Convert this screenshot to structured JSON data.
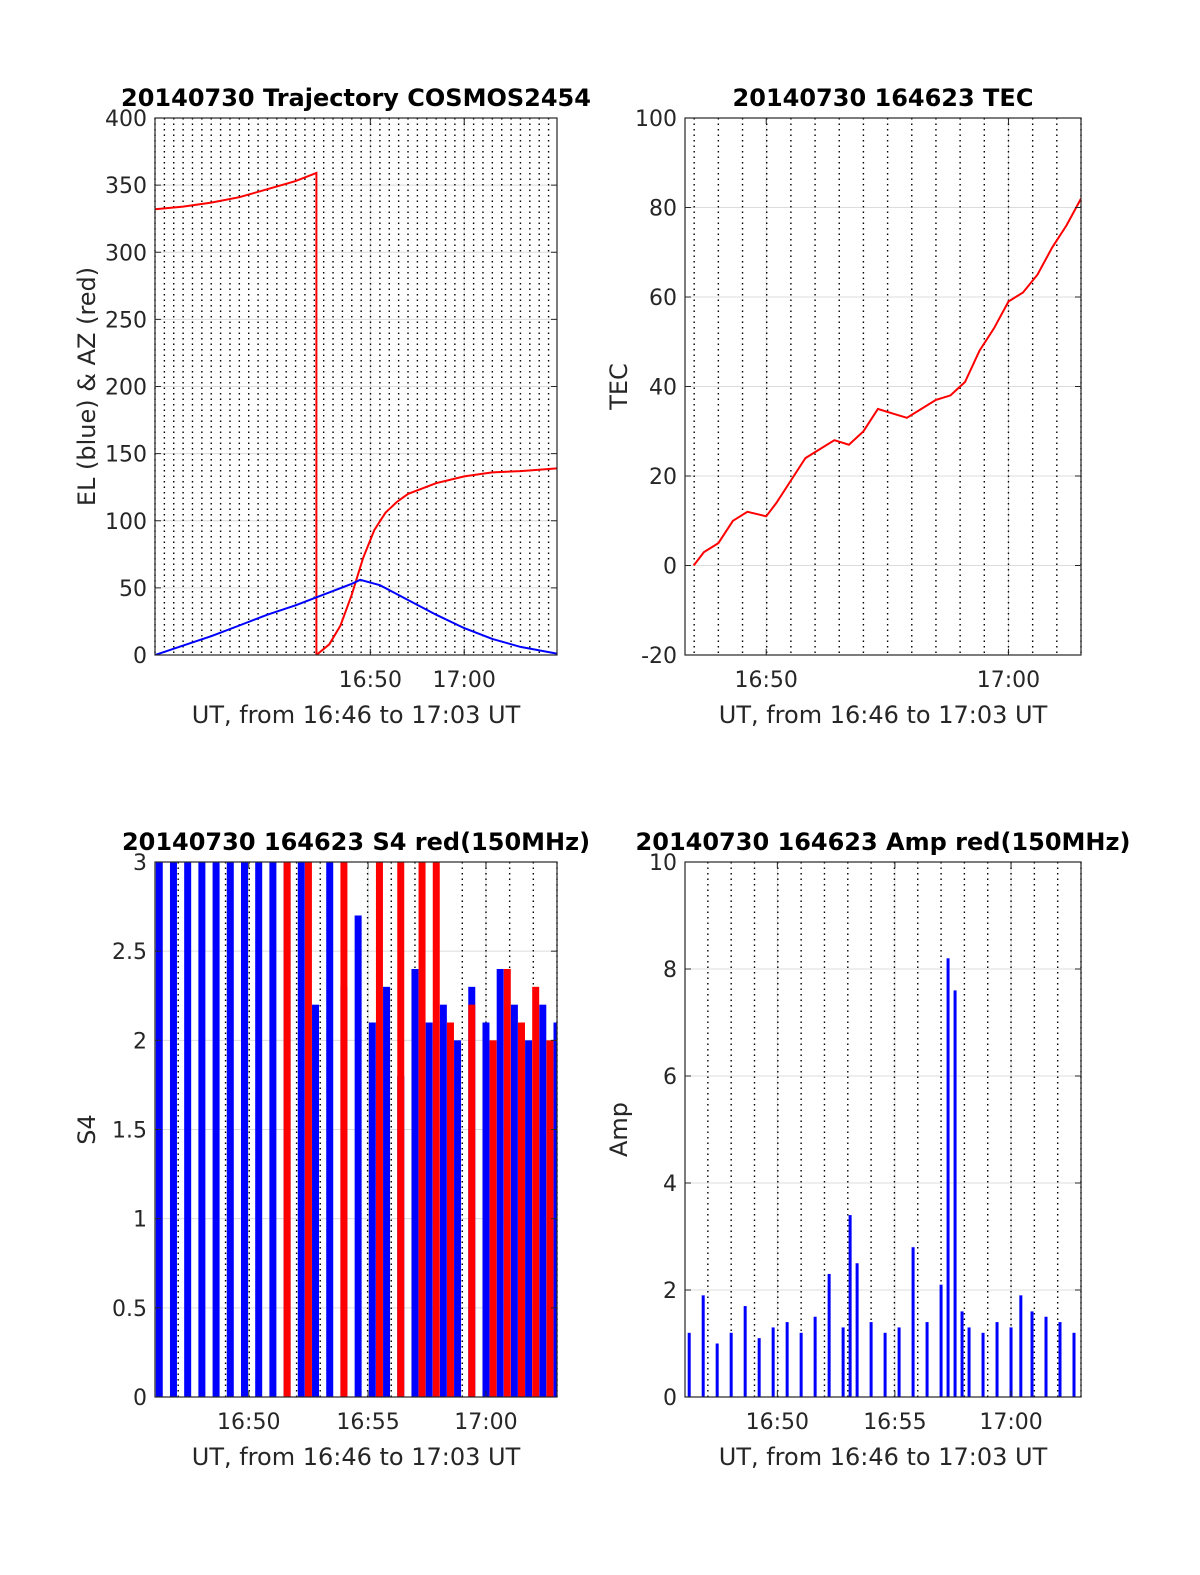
{
  "colors": {
    "red": "#ff0000",
    "blue": "#0000ff",
    "axis": "#262626",
    "grid": "#dcdcdc",
    "text": "#262626"
  },
  "chart_data": [
    {
      "type": "line",
      "title": "20140730 Trajectory COSMOS2454",
      "xlabel": "UT, from 16:46 to 17:03 UT",
      "ylabel": "EL (blue) & AZ (red)",
      "xlim": [
        16.45,
        17.165
      ],
      "ylim": [
        0,
        400
      ],
      "xticks": [
        16.833,
        17.0
      ],
      "xticklabels": [
        "16:50",
        "17:00"
      ],
      "yticks": [
        0,
        50,
        100,
        150,
        200,
        250,
        300,
        350,
        400
      ],
      "yticklabels": [
        "0",
        "50",
        "100",
        "150",
        "200",
        "250",
        "300",
        "350",
        "400"
      ],
      "grid": true,
      "series": [
        {
          "color": "red",
          "points": [
            [
              16.45,
              332
            ],
            [
              16.5,
              334
            ],
            [
              16.55,
              337
            ],
            [
              16.6,
              341
            ],
            [
              16.65,
              347
            ],
            [
              16.7,
              353
            ],
            [
              16.737,
              359
            ],
            [
              16.737,
              0
            ],
            [
              16.76,
              8
            ],
            [
              16.78,
              22
            ],
            [
              16.8,
              45
            ],
            [
              16.82,
              72
            ],
            [
              16.84,
              93
            ],
            [
              16.86,
              106
            ],
            [
              16.88,
              114
            ],
            [
              16.9,
              120
            ],
            [
              16.95,
              128
            ],
            [
              17.0,
              133
            ],
            [
              17.05,
              136
            ],
            [
              17.1,
              137
            ],
            [
              17.165,
              139
            ]
          ]
        },
        {
          "color": "blue",
          "points": [
            [
              16.45,
              0
            ],
            [
              16.5,
              7
            ],
            [
              16.55,
              14
            ],
            [
              16.6,
              22
            ],
            [
              16.65,
              30
            ],
            [
              16.7,
              37
            ],
            [
              16.75,
              45
            ],
            [
              16.8,
              53
            ],
            [
              16.815,
              56
            ],
            [
              16.85,
              52
            ],
            [
              16.9,
              41
            ],
            [
              16.95,
              30
            ],
            [
              17.0,
              20
            ],
            [
              17.05,
              12
            ],
            [
              17.1,
              6
            ],
            [
              17.165,
              1
            ]
          ]
        }
      ]
    },
    {
      "type": "line",
      "title": "20140730 164623 TEC",
      "xlabel": "UT, from 16:46 to 17:03 UT",
      "ylabel": "TEC",
      "xlim": [
        16.777,
        17.05
      ],
      "ylim": [
        -20,
        100
      ],
      "xticks": [
        16.833,
        17.0
      ],
      "xticklabels": [
        "16:50",
        "17:00"
      ],
      "yticks": [
        -20,
        0,
        20,
        40,
        60,
        80,
        100
      ],
      "yticklabels": [
        "-20",
        "0",
        "20",
        "40",
        "60",
        "80",
        "100"
      ],
      "grid": true,
      "series": [
        {
          "color": "red",
          "points": [
            [
              16.783,
              0
            ],
            [
              16.79,
              3
            ],
            [
              16.8,
              5
            ],
            [
              16.81,
              10
            ],
            [
              16.82,
              12
            ],
            [
              16.833,
              11
            ],
            [
              16.84,
              14
            ],
            [
              16.85,
              19
            ],
            [
              16.86,
              24
            ],
            [
              16.87,
              26
            ],
            [
              16.88,
              28
            ],
            [
              16.89,
              27
            ],
            [
              16.9,
              30
            ],
            [
              16.91,
              35
            ],
            [
              16.92,
              34
            ],
            [
              16.93,
              33
            ],
            [
              16.94,
              35
            ],
            [
              16.95,
              37
            ],
            [
              16.96,
              38
            ],
            [
              16.97,
              41
            ],
            [
              16.98,
              48
            ],
            [
              16.99,
              53
            ],
            [
              17.0,
              59
            ],
            [
              17.01,
              61
            ],
            [
              17.02,
              65
            ],
            [
              17.03,
              71
            ],
            [
              17.04,
              76
            ],
            [
              17.05,
              82
            ]
          ]
        }
      ]
    },
    {
      "type": "bar",
      "title": "20140730 164623 S4 red(150MHz)",
      "xlabel": "UT, from 16:46 to 17:03 UT",
      "ylabel": "S4",
      "xlim": [
        16.767,
        17.05
      ],
      "ylim": [
        0,
        3
      ],
      "xticks": [
        16.833,
        16.917,
        17.0
      ],
      "xticklabels": [
        "16:50",
        "16:55",
        "17:00"
      ],
      "yticks": [
        0,
        0.5,
        1,
        1.5,
        2,
        2.5,
        3
      ],
      "yticklabels": [
        "0",
        "0.5",
        "1",
        "1.5",
        "2",
        "2.5",
        "3"
      ],
      "grid": true,
      "series": [
        {
          "color": "blue",
          "points": [
            [
              16.77,
              3
            ],
            [
              16.78,
              3
            ],
            [
              16.79,
              3
            ],
            [
              16.8,
              3
            ],
            [
              16.81,
              3
            ],
            [
              16.82,
              3
            ],
            [
              16.83,
              3
            ],
            [
              16.84,
              3
            ],
            [
              16.85,
              3
            ],
            [
              16.86,
              3
            ],
            [
              16.87,
              3
            ],
            [
              16.88,
              2.2
            ],
            [
              16.89,
              3
            ],
            [
              16.9,
              2.3
            ],
            [
              16.91,
              2.7
            ],
            [
              16.92,
              2.1
            ],
            [
              16.93,
              2.3
            ],
            [
              16.94,
              1.8
            ],
            [
              16.95,
              2.4
            ],
            [
              16.96,
              2.1
            ],
            [
              16.97,
              2.2
            ],
            [
              16.98,
              2.0
            ],
            [
              16.99,
              2.3
            ],
            [
              17.0,
              2.1
            ],
            [
              17.01,
              2.4
            ],
            [
              17.02,
              2.2
            ],
            [
              17.03,
              2.0
            ],
            [
              17.04,
              2.2
            ],
            [
              17.05,
              2.1
            ]
          ]
        },
        {
          "color": "red",
          "points": [
            [
              16.86,
              3
            ],
            [
              16.875,
              3
            ],
            [
              16.9,
              3
            ],
            [
              16.925,
              3
            ],
            [
              16.94,
              3
            ],
            [
              16.955,
              3
            ],
            [
              16.965,
              3
            ],
            [
              16.975,
              2.1
            ],
            [
              16.99,
              2.2
            ],
            [
              17.005,
              2.0
            ],
            [
              17.015,
              2.4
            ],
            [
              17.025,
              2.1
            ],
            [
              17.035,
              2.3
            ],
            [
              17.045,
              2.0
            ]
          ]
        }
      ]
    },
    {
      "type": "bar",
      "title": "20140730 164623 Amp red(150MHz)",
      "xlabel": "UT, from 16:46 to 17:03 UT",
      "ylabel": "Amp",
      "xlim": [
        16.767,
        17.05
      ],
      "ylim": [
        0,
        10
      ],
      "xticks": [
        16.833,
        16.917,
        17.0
      ],
      "xticklabels": [
        "16:50",
        "16:55",
        "17:00"
      ],
      "yticks": [
        0,
        2,
        4,
        6,
        8,
        10
      ],
      "yticklabels": [
        "0",
        "2",
        "4",
        "6",
        "8",
        "10"
      ],
      "grid": true,
      "series": [
        {
          "color": "blue",
          "points": [
            [
              16.77,
              1.2
            ],
            [
              16.78,
              1.9
            ],
            [
              16.79,
              1.0
            ],
            [
              16.8,
              1.2
            ],
            [
              16.81,
              1.7
            ],
            [
              16.82,
              1.1
            ],
            [
              16.83,
              1.3
            ],
            [
              16.84,
              1.4
            ],
            [
              16.85,
              1.2
            ],
            [
              16.86,
              1.5
            ],
            [
              16.87,
              2.3
            ],
            [
              16.88,
              1.3
            ],
            [
              16.885,
              3.4
            ],
            [
              16.89,
              2.5
            ],
            [
              16.9,
              1.4
            ],
            [
              16.91,
              1.2
            ],
            [
              16.92,
              1.3
            ],
            [
              16.93,
              2.8
            ],
            [
              16.94,
              1.4
            ],
            [
              16.95,
              2.1
            ],
            [
              16.955,
              8.2
            ],
            [
              16.96,
              7.6
            ],
            [
              16.965,
              1.6
            ],
            [
              16.97,
              1.3
            ],
            [
              16.98,
              1.2
            ],
            [
              16.99,
              1.4
            ],
            [
              17.0,
              1.3
            ],
            [
              17.007,
              1.9
            ],
            [
              17.015,
              1.6
            ],
            [
              17.025,
              1.5
            ],
            [
              17.035,
              1.4
            ],
            [
              17.045,
              1.2
            ]
          ]
        }
      ]
    }
  ]
}
